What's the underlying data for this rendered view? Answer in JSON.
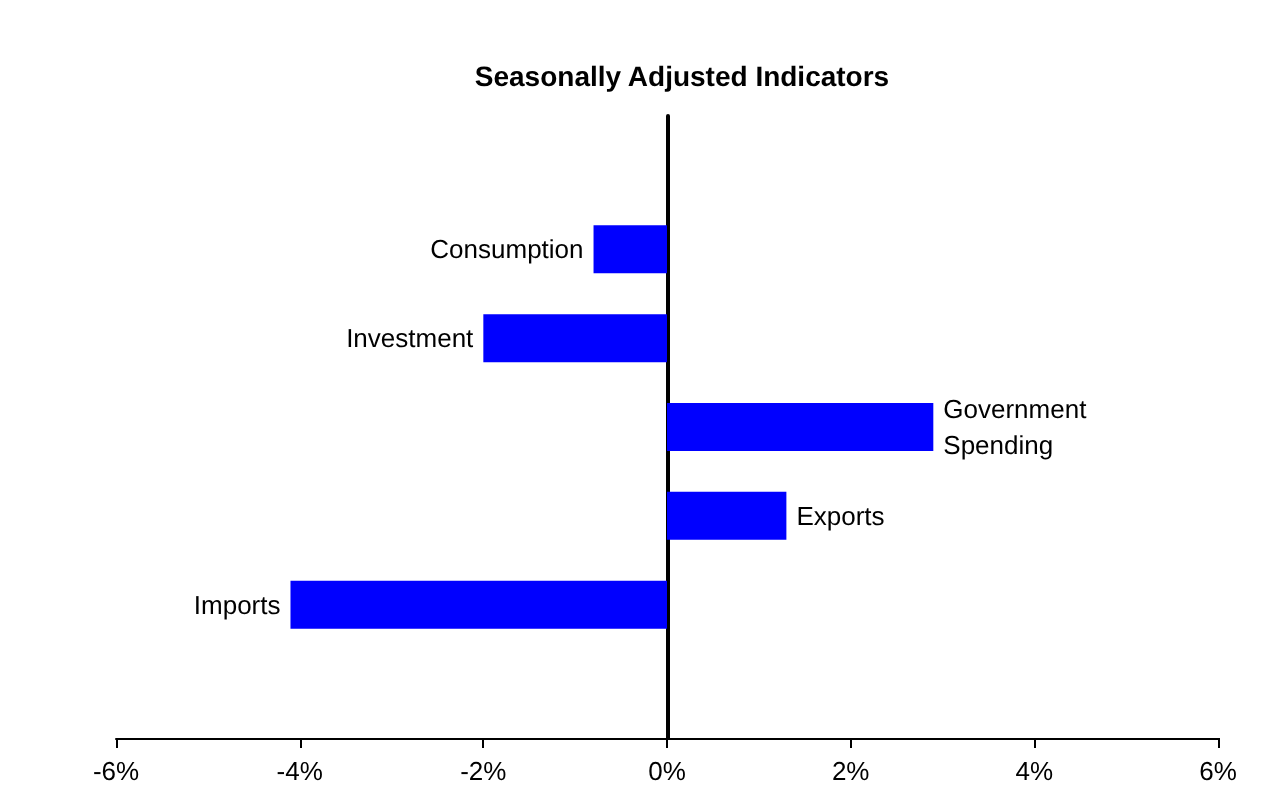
{
  "chart_data": {
    "type": "bar",
    "orientation": "horizontal",
    "title": "Seasonally Adjusted Indicators",
    "categories": [
      null,
      "Consumption",
      "Investment",
      "Government Spending",
      "Exports",
      "Imports",
      null
    ],
    "values": [
      null,
      -0.8,
      -2.0,
      2.9,
      1.3,
      -4.1,
      null
    ],
    "color": "#0000ff",
    "xlim": [
      -6,
      6
    ],
    "xticks": [
      {
        "value": -6,
        "label": "-6%"
      },
      {
        "value": -4,
        "label": "-4%"
      },
      {
        "value": -2,
        "label": "-2%"
      },
      {
        "value": 0,
        "label": "0%"
      },
      {
        "value": 2,
        "label": "2%"
      },
      {
        "value": 4,
        "label": "4%"
      },
      {
        "value": 6,
        "label": "6%"
      }
    ],
    "tick_labels": "x"
  }
}
